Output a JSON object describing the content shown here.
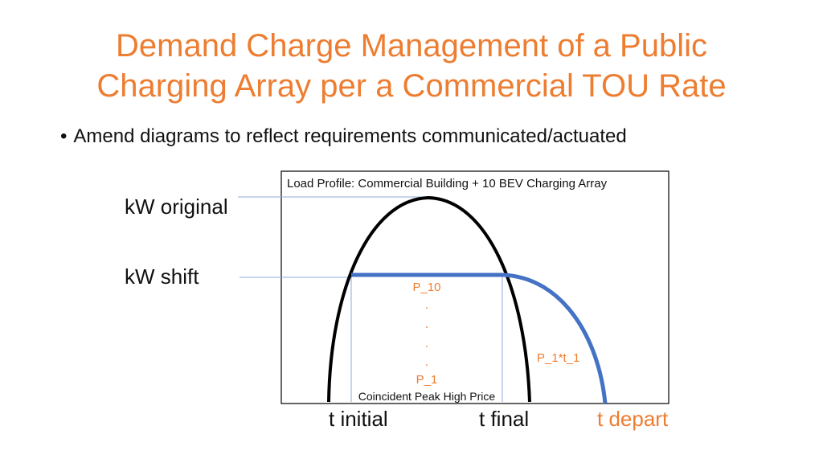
{
  "title": {
    "line1": "Demand Charge Management of a Public",
    "line2": "Charging Array per a Commercial TOU Rate"
  },
  "bullet": {
    "text": "Amend diagrams to reflect requirements communicated/actuated"
  },
  "diagram": {
    "box_title": "Load Profile: Commercial Building + 10 BEV Charging Array",
    "kw_original": "kW original",
    "kw_shift": "kW shift",
    "p10": "P_10",
    "dots": [
      ".",
      ".",
      ".",
      "."
    ],
    "p1": "P_1",
    "coincident": "Coincident Peak High Price",
    "p1t1": "P_1*t_1",
    "t_initial": "t initial",
    "t_final": "t final",
    "t_depart": "t depart",
    "colors": {
      "title": "#ED7D31",
      "shift_curve": "#4472C4",
      "guide_lines": "#8FAADC",
      "original_curve": "#000000"
    }
  }
}
